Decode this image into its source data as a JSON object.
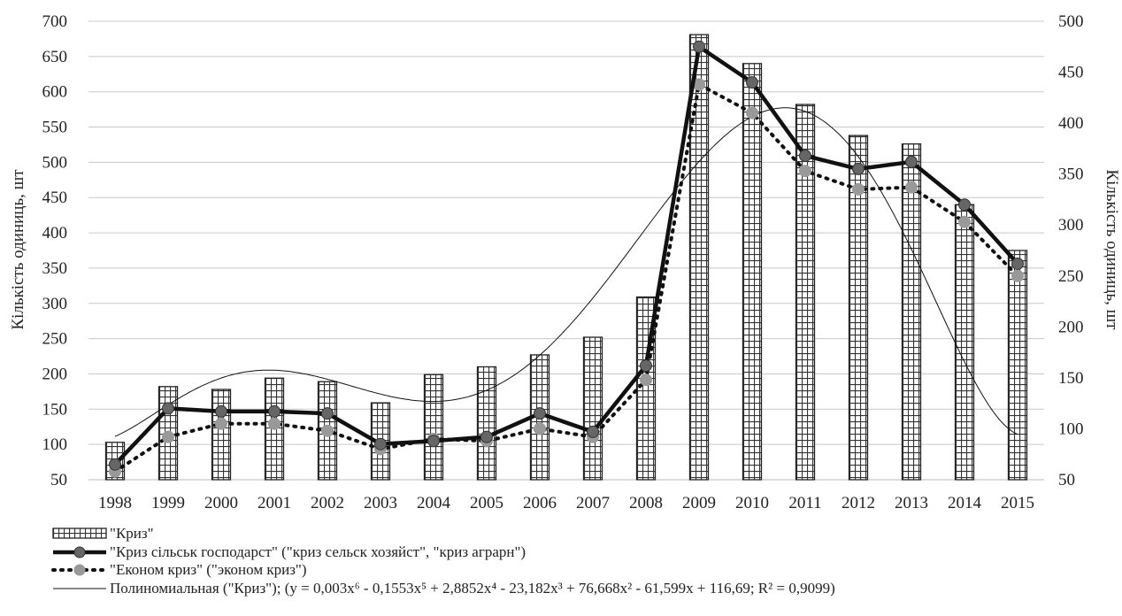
{
  "chart_data": {
    "type": "bar",
    "title": "",
    "x": [
      "1998",
      "1999",
      "2000",
      "2001",
      "2002",
      "2003",
      "2004",
      "2005",
      "2006",
      "2007",
      "2008",
      "2009",
      "2010",
      "2011",
      "2012",
      "2013",
      "2014",
      "2015"
    ],
    "ylabel": "Кількість одиниць, шт",
    "y2label": "Кількість одиниць, шт",
    "ylim": [
      50,
      700
    ],
    "y2lim": [
      50,
      500
    ],
    "yticks": [
      50,
      100,
      150,
      200,
      250,
      300,
      350,
      400,
      450,
      500,
      550,
      600,
      650,
      700
    ],
    "y2ticks": [
      50,
      100,
      150,
      200,
      250,
      300,
      350,
      400,
      450,
      500
    ],
    "grid": true,
    "legend_position": "bottom-left",
    "series": [
      {
        "name": "\"Криз\"",
        "kind": "bar",
        "axis": "left",
        "pattern": "grid",
        "values": [
          103,
          182,
          178,
          194,
          189,
          159,
          199,
          210,
          227,
          252,
          309,
          681,
          640,
          582,
          538,
          526,
          440,
          375
        ]
      },
      {
        "name": "\"Криз сільськ господарст\" (\"криз сельск хозяйст\", \"криз аграрн\")",
        "kind": "line",
        "axis": "right",
        "style": "solid-thick-marker",
        "color": "#111111",
        "marker_color": "#666666",
        "values": [
          65,
          120,
          117,
          117,
          115,
          85,
          88,
          92,
          115,
          97,
          162,
          475,
          440,
          368,
          355,
          362,
          320,
          262
        ]
      },
      {
        "name": "\"Економ криз\" (\"эконом криз\")",
        "kind": "line",
        "axis": "right",
        "style": "dotted-marker",
        "color": "#111111",
        "marker_color": "#999999",
        "values": [
          58,
          92,
          105,
          105,
          98,
          80,
          90,
          88,
          100,
          92,
          148,
          438,
          410,
          353,
          335,
          337,
          303,
          250
        ]
      },
      {
        "name": "Полиномиальная (\"Криз\"); (y = 0,003x⁶ - 0,1553x⁵ + 2,8852x⁴ - 23,182x³ + 76,668x² - 61,599x + 116,69; R² = 0,9099)",
        "kind": "trendline",
        "axis": "left",
        "style": "thin",
        "color": "#111111",
        "coefficients": [
          0.003,
          -0.1553,
          2.8852,
          -23.182,
          76.668,
          -61.599,
          116.69
        ]
      }
    ]
  }
}
